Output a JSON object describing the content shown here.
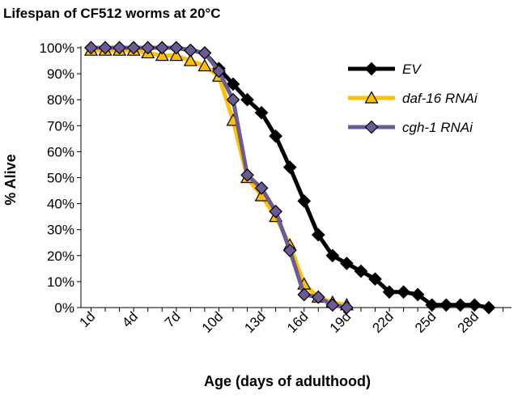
{
  "chart_data": {
    "type": "line",
    "title": "Lifespan of CF512 worms at 20°C",
    "xlabel": "Age (days of adulthood)",
    "ylabel": "% Alive",
    "xlim": [
      1,
      30
    ],
    "ylim": [
      0,
      100
    ],
    "y_ticks": [
      0,
      10,
      20,
      30,
      40,
      50,
      60,
      70,
      80,
      90,
      100
    ],
    "y_tick_labels": [
      "0%",
      "10%",
      "20%",
      "30%",
      "40%",
      "50%",
      "60%",
      "70%",
      "80%",
      "90%",
      "100%"
    ],
    "x_tick_days": [
      1,
      4,
      7,
      10,
      13,
      16,
      19,
      22,
      25,
      28
    ],
    "x_tick_labels": [
      "1d",
      "4d",
      "7d",
      "10d",
      "13d",
      "16d",
      "19d",
      "22d",
      "25d",
      "28d"
    ],
    "grid": false,
    "legend_position": "top-right",
    "series": [
      {
        "name": "EV",
        "color": "#000000",
        "marker": "diamond",
        "x": [
          1,
          2,
          3,
          4,
          5,
          6,
          7,
          8,
          9,
          10,
          11,
          12,
          13,
          14,
          15,
          16,
          17,
          18,
          19,
          20,
          21,
          22,
          23,
          24,
          25,
          26,
          27,
          28,
          29
        ],
        "y": [
          100,
          100,
          100,
          100,
          100,
          100,
          100,
          99,
          98,
          92,
          86,
          80,
          75,
          66,
          54,
          41,
          28,
          20,
          17,
          14,
          11,
          6,
          6,
          5,
          1,
          1,
          1,
          1,
          0
        ]
      },
      {
        "name": "daf-16 RNAi",
        "color": "#FFC000",
        "marker": "triangle",
        "x": [
          1,
          2,
          3,
          4,
          5,
          6,
          7,
          8,
          9,
          10,
          11,
          12,
          13,
          14,
          15,
          16,
          17,
          18,
          19
        ],
        "y": [
          99,
          99,
          99,
          99,
          98,
          97,
          97,
          95,
          93,
          89,
          72,
          50,
          43,
          35,
          24,
          9,
          4,
          2,
          1
        ]
      },
      {
        "name": "cgh-1 RNAi",
        "color": "#6B5B95",
        "marker": "diamond",
        "x": [
          1,
          2,
          3,
          4,
          5,
          6,
          7,
          8,
          9,
          10,
          11,
          12,
          13,
          14,
          15,
          16,
          17,
          18,
          19
        ],
        "y": [
          100,
          100,
          100,
          100,
          100,
          100,
          100,
          99,
          98,
          91,
          80,
          51,
          46,
          37,
          22,
          5,
          4,
          1,
          0
        ]
      }
    ]
  }
}
